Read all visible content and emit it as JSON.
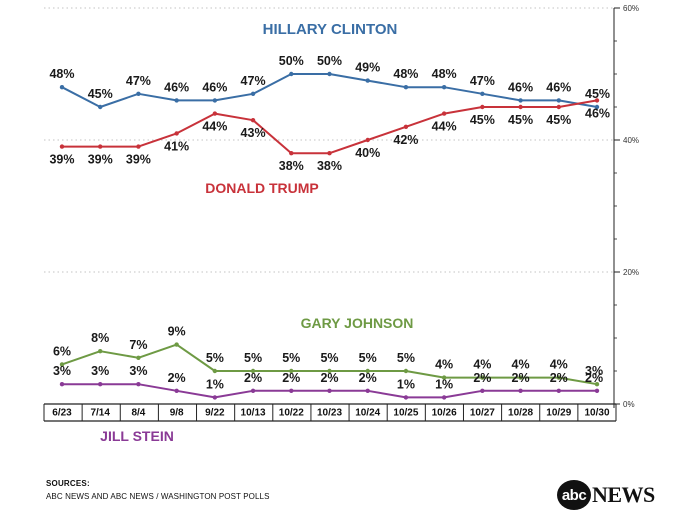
{
  "chart_data": {
    "type": "line",
    "categories": [
      "6/23",
      "7/14",
      "8/4",
      "9/8",
      "9/22",
      "10/13",
      "10/22",
      "10/23",
      "10/24",
      "10/25",
      "10/26",
      "10/27",
      "10/28",
      "10/29",
      "10/30"
    ],
    "ylim": [
      0,
      60
    ],
    "y_ticks": [
      {
        "value": 0,
        "label": "0%"
      },
      {
        "value": 20,
        "label": "20%"
      },
      {
        "value": 40,
        "label": "40%"
      },
      {
        "value": 60,
        "label": "60%"
      }
    ],
    "series": [
      {
        "name": "HILLARY CLINTON",
        "key": "clinton",
        "color": "#3a6ea5",
        "label_side": "above",
        "values": [
          48,
          45,
          47,
          46,
          46,
          47,
          50,
          50,
          49,
          48,
          48,
          47,
          46,
          46,
          45
        ],
        "labels": [
          "48%",
          "45%",
          "47%",
          "46%",
          "46%",
          "47%",
          "50%",
          "50%",
          "49%",
          "48%",
          "48%",
          "47%",
          "46%",
          "46%",
          "45%"
        ]
      },
      {
        "name": "DONALD TRUMP",
        "key": "trump",
        "color": "#c8323a",
        "label_side": "below",
        "values": [
          39,
          39,
          39,
          41,
          44,
          43,
          38,
          38,
          40,
          42,
          44,
          45,
          45,
          45,
          46
        ],
        "labels": [
          "39%",
          "39%",
          "39%",
          "41%",
          "44%",
          "43%",
          "38%",
          "38%",
          "40%",
          "42%",
          "44%",
          "45%",
          "45%",
          "45%",
          "46%"
        ]
      },
      {
        "name": "GARY JOHNSON",
        "key": "johnson",
        "color": "#6e9a44",
        "label_side": "above",
        "values": [
          6,
          8,
          7,
          9,
          5,
          5,
          5,
          5,
          5,
          5,
          4,
          4,
          4,
          4,
          3
        ],
        "labels": [
          "6%",
          "8%",
          "7%",
          "9%",
          "5%",
          "5%",
          "5%",
          "5%",
          "5%",
          "5%",
          "4%",
          "4%",
          "4%",
          "4%",
          "3%"
        ]
      },
      {
        "name": "JILL STEIN",
        "key": "stein",
        "color": "#8a3a96",
        "label_side": "above",
        "values": [
          3,
          3,
          3,
          2,
          1,
          2,
          2,
          2,
          2,
          1,
          1,
          2,
          2,
          2,
          2
        ],
        "labels": [
          "3%",
          "3%",
          "3%",
          "2%",
          "1%",
          "2%",
          "2%",
          "2%",
          "2%",
          "1%",
          "1%",
          "2%",
          "2%",
          "2%",
          "2%"
        ]
      }
    ]
  },
  "series_titles": {
    "clinton": "HILLARY CLINTON",
    "trump": "DONALD TRUMP",
    "johnson": "GARY JOHNSON",
    "stein": "JILL STEIN"
  },
  "sources": {
    "title": "SOURCES:",
    "text": "ABC NEWS AND ABC NEWS / WASHINGTON POST POLLS"
  },
  "logo": {
    "circle_text": "abc",
    "word": "NEWS"
  }
}
